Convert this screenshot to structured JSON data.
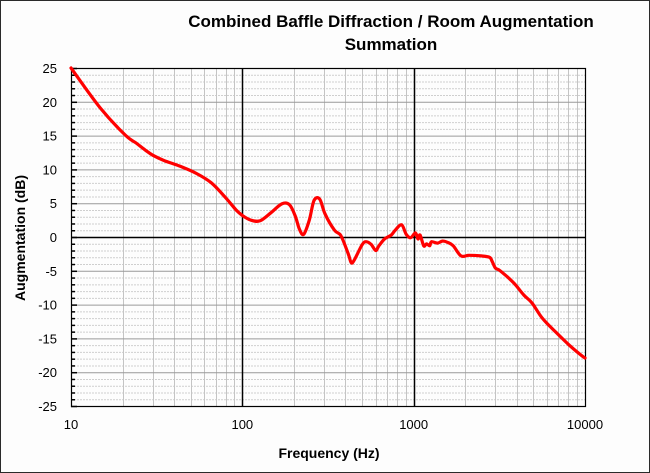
{
  "chart_data": {
    "type": "line",
    "title": "Combined Baffle Diffraction / Room Augmentation Summation",
    "title_lines": [
      "Combined Baffle Diffraction / Room Augmentation",
      "Summation"
    ],
    "xlabel": "Frequency (Hz)",
    "ylabel": "Augmentation (dB)",
    "xscale": "log",
    "xlim": [
      10,
      10000
    ],
    "ylim": [
      -25,
      25
    ],
    "xticks": [
      "10",
      "100",
      "1000",
      "10000"
    ],
    "yticks": [
      "25",
      "20",
      "15",
      "10",
      "5",
      "0",
      "-5",
      "-10",
      "-15",
      "-20",
      "-25"
    ],
    "grid": true,
    "legend": null,
    "series": [
      {
        "name": "Augmentation",
        "color": "#ff0000",
        "x": [
          10,
          14.8,
          20.7,
          24,
          27,
          30,
          35,
          43,
          54,
          66,
          80,
          92,
          100,
          112,
          127,
          147,
          170,
          188,
          203,
          215,
          228,
          246,
          262,
          283,
          304,
          345,
          376,
          414,
          432,
          450,
          499,
          526,
          565,
          600,
          627,
          676,
          740,
          780,
          850,
          905,
          959,
          1025,
          1060,
          1090,
          1145,
          1190,
          1240,
          1270,
          1380,
          1470,
          1580,
          1700,
          1890,
          2100,
          2480,
          2770,
          2870,
          3000,
          3200,
          3840,
          4400,
          4920,
          5630,
          6840,
          8100,
          9500,
          10000
        ],
        "y": [
          25,
          19.1,
          15.1,
          13.9,
          12.9,
          12.1,
          11.3,
          10.5,
          9.4,
          8,
          5.8,
          4,
          3.2,
          2.5,
          2.4,
          3.6,
          4.9,
          4.8,
          3.2,
          1.2,
          0.4,
          2.5,
          5.4,
          5.6,
          3.4,
          1,
          0.2,
          -2.4,
          -3.8,
          -3.4,
          -1.2,
          -0.7,
          -1.1,
          -2,
          -1.3,
          -0.3,
          0.3,
          1.0,
          1.8,
          0.4,
          -0.1,
          0.6,
          -0.3,
          0.3,
          -1.3,
          -1,
          -1.3,
          -0.7,
          -0.9,
          -0.6,
          -0.8,
          -1.3,
          -2.8,
          -2.7,
          -2.8,
          -3,
          -3.6,
          -4.6,
          -5,
          -6.8,
          -8.6,
          -9.8,
          -12,
          -14.2,
          -16,
          -17.5,
          -17.9
        ]
      }
    ]
  }
}
